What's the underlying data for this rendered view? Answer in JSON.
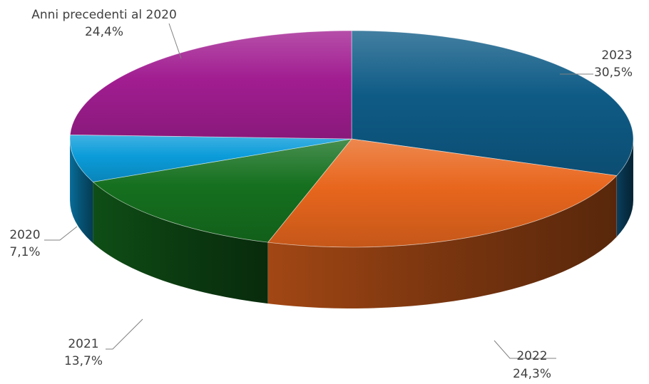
{
  "chart_data": {
    "type": "pie",
    "style": "3d",
    "slices": [
      {
        "label": "2023",
        "value": 30.5,
        "value_label": "30,5%",
        "color": "#0e5b86"
      },
      {
        "label": "2022",
        "value": 24.3,
        "value_label": "24,3%",
        "color": "#e8661d"
      },
      {
        "label": "2021",
        "value": 13.7,
        "value_label": "13,7%",
        "color": "#15701f"
      },
      {
        "label": "2020",
        "value": 7.1,
        "value_label": "7,1%",
        "color": "#0b9cda"
      },
      {
        "label": "Anni precedenti al 2020",
        "value": 24.4,
        "value_label": "24,4%",
        "color": "#a11d91"
      }
    ]
  }
}
